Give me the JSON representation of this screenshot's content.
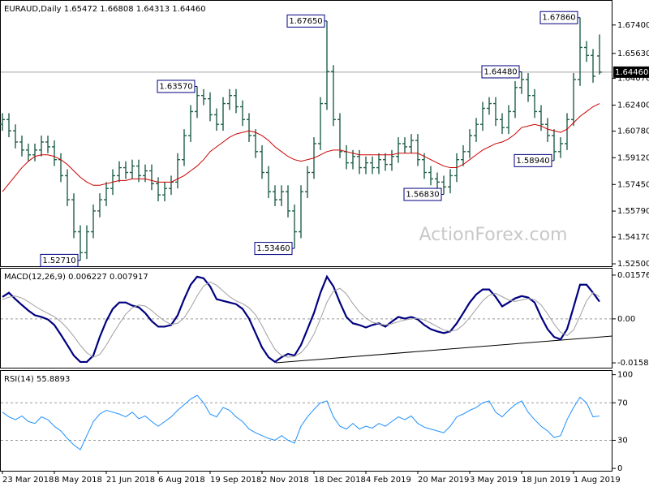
{
  "chart_data": [
    {
      "type": "ohlc",
      "title": "EURAUD,Daily 1.65472 1.66808 1.64313 1.64460",
      "watermark": "ActionForex.com",
      "categories": [
        "23 Mar 2018",
        null,
        null,
        null,
        null,
        null,
        null,
        null,
        "8 May 2018",
        null,
        null,
        null,
        null,
        null,
        null,
        null,
        "21 Jun 2018",
        null,
        null,
        null,
        null,
        null,
        null,
        null,
        "6 Aug 2018",
        null,
        null,
        null,
        null,
        null,
        null,
        null,
        "19 Sep 2018",
        null,
        null,
        null,
        null,
        null,
        null,
        null,
        "2 Nov 2018",
        null,
        null,
        null,
        null,
        null,
        null,
        null,
        "18 Dec 2018",
        null,
        null,
        null,
        null,
        null,
        null,
        null,
        "4 Feb 2019",
        null,
        null,
        null,
        null,
        null,
        null,
        null,
        "20 Mar 2019",
        null,
        null,
        null,
        null,
        null,
        null,
        null,
        "3 May 2019",
        null,
        null,
        null,
        null,
        null,
        null,
        null,
        "18 Jun 2019",
        null,
        null,
        null,
        null,
        null,
        null,
        null,
        "1 Aug 2019",
        null,
        null,
        null,
        null
      ],
      "open": [
        1.612,
        1.615,
        1.608,
        1.601,
        1.596,
        1.593,
        1.596,
        1.601,
        1.598,
        1.59,
        1.58,
        1.565,
        1.545,
        1.532,
        1.545,
        1.558,
        1.565,
        1.572,
        1.58,
        1.585,
        1.582,
        1.586,
        1.58,
        1.583,
        1.575,
        1.568,
        1.572,
        1.576,
        1.59,
        1.605,
        1.62,
        1.63,
        1.628,
        1.618,
        1.612,
        1.625,
        1.63,
        1.623,
        1.615,
        1.605,
        1.595,
        1.582,
        1.57,
        1.565,
        1.57,
        1.558,
        1.545,
        1.57,
        1.582,
        1.6,
        1.625,
        1.645,
        1.615,
        1.595,
        1.588,
        1.592,
        1.585,
        1.588,
        1.585,
        1.59,
        1.587,
        1.592,
        1.6,
        1.598,
        1.602,
        1.59,
        1.582,
        1.578,
        1.576,
        1.573,
        1.58,
        1.59,
        1.595,
        1.605,
        1.612,
        1.622,
        1.625,
        1.615,
        1.61,
        1.62,
        1.635,
        1.64,
        1.63,
        1.62,
        1.612,
        1.605,
        1.595,
        1.6,
        1.615,
        1.64,
        1.66,
        1.655,
        1.6547
      ],
      "high": [
        1.619,
        1.619,
        1.612,
        1.605,
        1.6,
        1.6,
        1.605,
        1.605,
        1.602,
        1.594,
        1.584,
        1.569,
        1.549,
        1.549,
        1.562,
        1.569,
        1.576,
        1.584,
        1.589,
        1.589,
        1.59,
        1.59,
        1.587,
        1.587,
        1.579,
        1.576,
        1.58,
        1.594,
        1.609,
        1.624,
        1.6357,
        1.634,
        1.632,
        1.622,
        1.629,
        1.634,
        1.634,
        1.627,
        1.619,
        1.609,
        1.599,
        1.586,
        1.574,
        1.574,
        1.574,
        1.562,
        1.574,
        1.586,
        1.604,
        1.629,
        1.6765,
        1.649,
        1.619,
        1.599,
        1.596,
        1.596,
        1.592,
        1.592,
        1.594,
        1.594,
        1.596,
        1.604,
        1.604,
        1.606,
        1.606,
        1.594,
        1.586,
        1.582,
        1.58,
        1.584,
        1.594,
        1.599,
        1.609,
        1.616,
        1.626,
        1.629,
        1.629,
        1.619,
        1.624,
        1.639,
        1.6448,
        1.644,
        1.634,
        1.624,
        1.616,
        1.609,
        1.604,
        1.619,
        1.644,
        1.6786,
        1.664,
        1.659,
        1.6681
      ],
      "low": [
        1.608,
        1.604,
        1.597,
        1.592,
        1.589,
        1.589,
        1.592,
        1.594,
        1.586,
        1.576,
        1.561,
        1.541,
        1.5271,
        1.528,
        1.541,
        1.554,
        1.561,
        1.568,
        1.576,
        1.578,
        1.578,
        1.576,
        1.576,
        1.571,
        1.564,
        1.564,
        1.568,
        1.572,
        1.586,
        1.601,
        1.616,
        1.624,
        1.614,
        1.608,
        1.608,
        1.621,
        1.619,
        1.611,
        1.601,
        1.591,
        1.578,
        1.566,
        1.561,
        1.561,
        1.554,
        1.5346,
        1.541,
        1.566,
        1.578,
        1.596,
        1.621,
        1.611,
        1.591,
        1.584,
        1.584,
        1.581,
        1.581,
        1.581,
        1.581,
        1.583,
        1.583,
        1.588,
        1.594,
        1.594,
        1.586,
        1.578,
        1.574,
        1.572,
        1.5683,
        1.569,
        1.576,
        1.586,
        1.591,
        1.601,
        1.608,
        1.618,
        1.611,
        1.606,
        1.606,
        1.616,
        1.631,
        1.626,
        1.616,
        1.608,
        1.601,
        1.5894,
        1.591,
        1.596,
        1.611,
        1.636,
        1.651,
        1.638,
        1.6431
      ],
      "close": [
        1.615,
        1.608,
        1.601,
        1.596,
        1.593,
        1.596,
        1.601,
        1.598,
        1.59,
        1.58,
        1.565,
        1.545,
        1.532,
        1.545,
        1.558,
        1.565,
        1.572,
        1.58,
        1.585,
        1.582,
        1.586,
        1.58,
        1.583,
        1.575,
        1.568,
        1.572,
        1.576,
        1.59,
        1.605,
        1.62,
        1.63,
        1.628,
        1.618,
        1.612,
        1.625,
        1.63,
        1.623,
        1.615,
        1.605,
        1.595,
        1.582,
        1.57,
        1.565,
        1.57,
        1.558,
        1.545,
        1.57,
        1.582,
        1.6,
        1.625,
        1.645,
        1.615,
        1.595,
        1.588,
        1.592,
        1.585,
        1.588,
        1.585,
        1.59,
        1.587,
        1.592,
        1.6,
        1.598,
        1.602,
        1.59,
        1.582,
        1.578,
        1.576,
        1.573,
        1.58,
        1.59,
        1.595,
        1.605,
        1.612,
        1.622,
        1.625,
        1.615,
        1.61,
        1.62,
        1.635,
        1.64,
        1.63,
        1.62,
        1.612,
        1.605,
        1.595,
        1.6,
        1.615,
        1.64,
        1.66,
        1.655,
        1.642,
        1.6446
      ],
      "color": "#1f5f4a",
      "ma": {
        "color": "#cc0000",
        "values": [
          1.57,
          1.575,
          1.58,
          1.585,
          1.589,
          1.592,
          1.593,
          1.593,
          1.592,
          1.59,
          1.587,
          1.583,
          1.579,
          1.576,
          1.574,
          1.574,
          1.575,
          1.576,
          1.577,
          1.577,
          1.578,
          1.578,
          1.578,
          1.577,
          1.576,
          1.576,
          1.576,
          1.578,
          1.58,
          1.583,
          1.586,
          1.59,
          1.595,
          1.598,
          1.601,
          1.604,
          1.606,
          1.607,
          1.608,
          1.607,
          1.605,
          1.602,
          1.598,
          1.595,
          1.592,
          1.59,
          1.589,
          1.59,
          1.591,
          1.593,
          1.595,
          1.596,
          1.596,
          1.595,
          1.594,
          1.593,
          1.593,
          1.593,
          1.593,
          1.593,
          1.593,
          1.594,
          1.594,
          1.594,
          1.594,
          1.592,
          1.59,
          1.588,
          1.586,
          1.585,
          1.585,
          1.587,
          1.59,
          1.593,
          1.596,
          1.598,
          1.6,
          1.601,
          1.603,
          1.606,
          1.61,
          1.611,
          1.612,
          1.611,
          1.609,
          1.608,
          1.607,
          1.609,
          1.613,
          1.617,
          1.62,
          1.623,
          1.625
        ]
      },
      "ylim": [
        1.5235,
        1.6891
      ],
      "yticks": [
        {
          "value": 1.674,
          "label": "1.67400"
        },
        {
          "value": 1.6563,
          "label": "1.65630"
        },
        {
          "value": 1.6407,
          "label": "1.64070"
        },
        {
          "value": 1.624,
          "label": "1.62400"
        },
        {
          "value": 1.6078,
          "label": "1.60780"
        },
        {
          "value": 1.5912,
          "label": "1.59120"
        },
        {
          "value": 1.5745,
          "label": "1.57450"
        },
        {
          "value": 1.5579,
          "label": "1.55790"
        },
        {
          "value": 1.5417,
          "label": "1.54170"
        },
        {
          "value": 1.525,
          "label": "1.52500"
        }
      ],
      "last_price": {
        "value": 1.6446,
        "label": "1.64460"
      },
      "annotations": [
        {
          "value": 1.6765,
          "label": "1.67650"
        },
        {
          "value": 1.6786,
          "label": "1.67860"
        },
        {
          "value": 1.6357,
          "label": "1.63570"
        },
        {
          "value": 1.6448,
          "label": "1.64480"
        },
        {
          "value": 1.5894,
          "label": "1.58940"
        },
        {
          "value": 1.5683,
          "label": "1.56830"
        },
        {
          "value": 1.5346,
          "label": "1.53460"
        },
        {
          "value": 1.5271,
          "label": "1.52710"
        }
      ]
    },
    {
      "type": "line",
      "title": "MACD(12,26,9) 0.006227 0.007917",
      "series": [
        {
          "color": "#000080",
          "values": [
            0.0079,
            0.0094,
            0.0071,
            0.005,
            0.003,
            0.0013,
            0.0007,
            -0.0002,
            -0.0022,
            -0.0057,
            -0.0094,
            -0.0132,
            -0.0155,
            -0.0155,
            -0.0132,
            -0.0065,
            -0.0008,
            0.0036,
            0.0059,
            0.0059,
            0.0048,
            0.0042,
            0.0021,
            -0.0008,
            -0.0028,
            -0.0028,
            -0.0022,
            0.0013,
            0.0071,
            0.0123,
            0.0152,
            0.0146,
            0.0117,
            0.0071,
            0.0065,
            0.0059,
            0.0053,
            0.0036,
            0.0001,
            -0.0051,
            -0.0103,
            -0.0138,
            -0.0155,
            -0.0138,
            -0.0126,
            -0.0132,
            -0.0094,
            -0.0037,
            0.0021,
            0.0094,
            0.0152,
            0.0117,
            0.0059,
            0.0007,
            -0.0016,
            -0.0022,
            -0.0031,
            -0.0022,
            -0.0016,
            -0.0028,
            -0.001,
            0.0007,
            0.0001,
            0.0007,
            -0.0002,
            -0.0022,
            -0.0037,
            -0.0045,
            -0.0051,
            -0.0045,
            -0.0016,
            0.0021,
            0.0059,
            0.0088,
            0.0106,
            0.0106,
            0.0079,
            0.0045,
            0.0059,
            0.0074,
            0.0082,
            0.0077,
            0.0059,
            0.0007,
            -0.0037,
            -0.0065,
            -0.0074,
            -0.0037,
            0.0042,
            0.0123,
            0.0123,
            0.0094,
            0.0062
          ]
        },
        {
          "color": "#a0a0a0",
          "values": [
            0.007,
            0.0078,
            0.0082,
            0.0075,
            0.0062,
            0.0046,
            0.0032,
            0.002,
            0.0008,
            -0.001,
            -0.0034,
            -0.0063,
            -0.0095,
            -0.0122,
            -0.0138,
            -0.0128,
            -0.0095,
            -0.0055,
            -0.0018,
            0.0017,
            0.004,
            0.005,
            0.0046,
            0.003,
            0.001,
            -0.0008,
            -0.002,
            -0.0016,
            0.0004,
            0.004,
            0.0083,
            0.0118,
            0.0133,
            0.0121,
            0.01,
            0.008,
            0.0065,
            0.0055,
            0.004,
            0.0015,
            -0.0025,
            -0.007,
            -0.011,
            -0.0132,
            -0.0138,
            -0.0135,
            -0.0122,
            -0.0095,
            -0.0055,
            0,
            0.006,
            0.01,
            0.011,
            0.009,
            0.0055,
            0.0025,
            0.0003,
            -0.0012,
            -0.0018,
            -0.0022,
            -0.0018,
            -0.001,
            -0.0004,
            0,
            0.0002,
            -0.0004,
            -0.0015,
            -0.0028,
            -0.004,
            -0.0045,
            -0.004,
            -0.0022,
            0.0005,
            0.0035,
            0.0065,
            0.0085,
            0.0092,
            0.008,
            0.0068,
            0.0063,
            0.0068,
            0.0073,
            0.007,
            0.005,
            0.0018,
            -0.0018,
            -0.0048,
            -0.006,
            -0.004,
            0.001,
            0.0065,
            0.0095,
            0.0079
          ]
        }
      ],
      "ylim": [
        -0.01757,
        0.01808
      ],
      "yticks": [
        {
          "value": 0.015762,
          "label": "0.015762"
        },
        {
          "value": 0,
          "label": "0.00"
        },
        {
          "value": -0.015834,
          "label": "-0.015834"
        }
      ],
      "levels": [
        0
      ]
    },
    {
      "type": "line",
      "title": "RSI(14) 55.8893",
      "series": [
        {
          "color": "#1e90ff",
          "values": [
            60,
            55,
            52,
            56,
            50,
            48,
            55,
            52,
            45,
            40,
            32,
            25,
            20,
            35,
            50,
            58,
            62,
            60,
            58,
            55,
            60,
            53,
            56,
            50,
            45,
            50,
            55,
            62,
            68,
            74,
            78,
            70,
            58,
            55,
            65,
            62,
            55,
            50,
            42,
            38,
            35,
            32,
            30,
            35,
            30,
            27,
            45,
            55,
            63,
            70,
            72,
            55,
            45,
            42,
            48,
            42,
            45,
            43,
            48,
            45,
            50,
            55,
            52,
            56,
            48,
            44,
            42,
            40,
            38,
            45,
            55,
            58,
            62,
            65,
            70,
            72,
            60,
            55,
            62,
            68,
            72,
            60,
            52,
            45,
            40,
            33,
            35,
            52,
            65,
            76,
            70,
            55,
            55.8893
          ]
        }
      ],
      "ylim": [
        -2.5,
        104
      ],
      "yticks": [
        100,
        70,
        30,
        0
      ],
      "levels": [
        70,
        30
      ]
    }
  ]
}
